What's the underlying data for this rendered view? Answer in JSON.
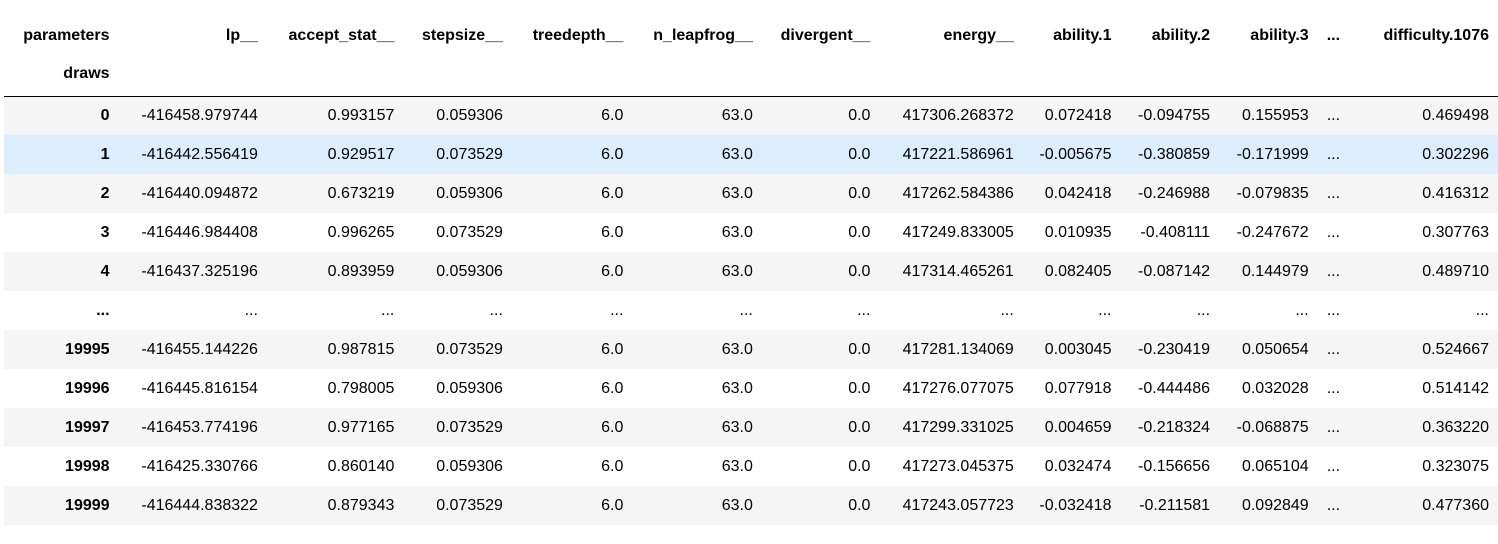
{
  "header": {
    "index_label": "parameters",
    "index_sublabel": "draws",
    "columns": [
      "lp__",
      "accept_stat__",
      "stepsize__",
      "treedepth__",
      "n_leapfrog__",
      "divergent__",
      "energy__",
      "ability.1",
      "ability.2",
      "ability.3",
      "...",
      "difficulty.1076"
    ]
  },
  "rows": [
    {
      "index": "0",
      "cells": [
        "-416458.979744",
        "0.993157",
        "0.059306",
        "6.0",
        "63.0",
        "0.0",
        "417306.268372",
        "0.072418",
        "-0.094755",
        "0.155953",
        "...",
        "0.469498"
      ]
    },
    {
      "index": "1",
      "cells": [
        "-416442.556419",
        "0.929517",
        "0.073529",
        "6.0",
        "63.0",
        "0.0",
        "417221.586961",
        "-0.005675",
        "-0.380859",
        "-0.171999",
        "...",
        "0.302296"
      ]
    },
    {
      "index": "2",
      "cells": [
        "-416440.094872",
        "0.673219",
        "0.059306",
        "6.0",
        "63.0",
        "0.0",
        "417262.584386",
        "0.042418",
        "-0.246988",
        "-0.079835",
        "...",
        "0.416312"
      ]
    },
    {
      "index": "3",
      "cells": [
        "-416446.984408",
        "0.996265",
        "0.073529",
        "6.0",
        "63.0",
        "0.0",
        "417249.833005",
        "0.010935",
        "-0.408111",
        "-0.247672",
        "...",
        "0.307763"
      ]
    },
    {
      "index": "4",
      "cells": [
        "-416437.325196",
        "0.893959",
        "0.059306",
        "6.0",
        "63.0",
        "0.0",
        "417314.465261",
        "0.082405",
        "-0.087142",
        "0.144979",
        "...",
        "0.489710"
      ]
    },
    {
      "index": "...",
      "cells": [
        "...",
        "...",
        "...",
        "...",
        "...",
        "...",
        "...",
        "...",
        "...",
        "...",
        "...",
        "..."
      ]
    },
    {
      "index": "19995",
      "cells": [
        "-416455.144226",
        "0.987815",
        "0.073529",
        "6.0",
        "63.0",
        "0.0",
        "417281.134069",
        "0.003045",
        "-0.230419",
        "0.050654",
        "...",
        "0.524667"
      ]
    },
    {
      "index": "19996",
      "cells": [
        "-416445.816154",
        "0.798005",
        "0.059306",
        "6.0",
        "63.0",
        "0.0",
        "417276.077075",
        "0.077918",
        "-0.444486",
        "0.032028",
        "...",
        "0.514142"
      ]
    },
    {
      "index": "19997",
      "cells": [
        "-416453.774196",
        "0.977165",
        "0.073529",
        "6.0",
        "63.0",
        "0.0",
        "417299.331025",
        "0.004659",
        "-0.218324",
        "-0.068875",
        "...",
        "0.363220"
      ]
    },
    {
      "index": "19998",
      "cells": [
        "-416425.330766",
        "0.860140",
        "0.059306",
        "6.0",
        "63.0",
        "0.0",
        "417273.045375",
        "0.032474",
        "-0.156656",
        "0.065104",
        "...",
        "0.323075"
      ]
    },
    {
      "index": "19999",
      "cells": [
        "-416444.838322",
        "0.879343",
        "0.073529",
        "6.0",
        "63.0",
        "0.0",
        "417243.057723",
        "-0.032418",
        "-0.211581",
        "0.092849",
        "...",
        "0.477360"
      ]
    }
  ],
  "hovered_row_index": 1,
  "colors": {
    "row_stripe": "#f5f5f5",
    "row_hover": "#dceefb",
    "header_rule": "#000000",
    "text": "#000000"
  }
}
